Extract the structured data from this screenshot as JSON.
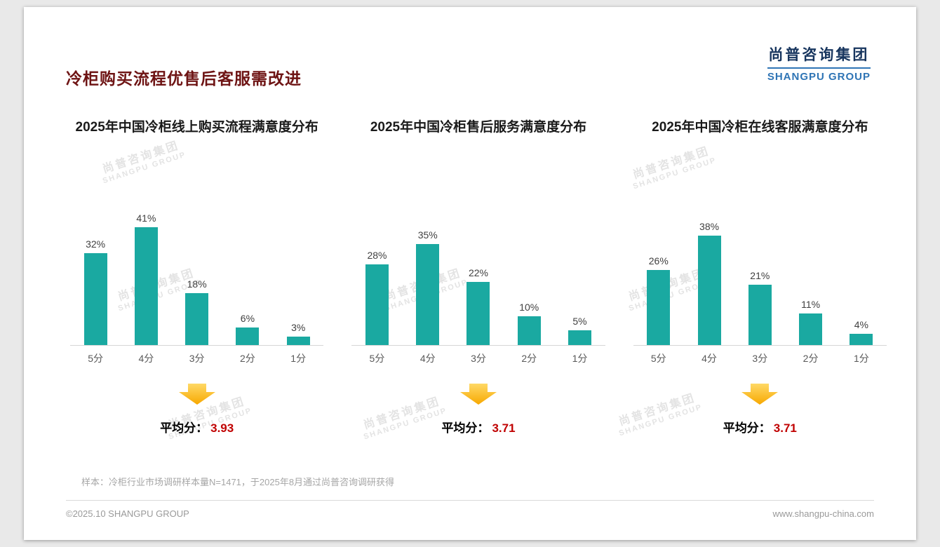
{
  "slide": {
    "title": "冷柜购买流程优售后客服需改进",
    "logo": {
      "cn": "尚普咨询集团",
      "en": "SHANGPU GROUP"
    },
    "watermark": {
      "cn": "尚普咨询集团",
      "en": "SHANGPU GROUP"
    },
    "avg_label": "平均分：",
    "footnote": "样本：冷柜行业市场调研样本量N=1471，于2025年8月通过尚普咨询调研获得",
    "footer_left": "©2025.10 SHANGPU GROUP",
    "footer_right": "www.shangpu-china.com",
    "colors": {
      "bar": "#1aa9a1",
      "title": "#6e1414",
      "average_value": "#c00000",
      "arrow": "#ffc000",
      "logo_blue": "#2e74b5"
    }
  },
  "chart_data": [
    {
      "type": "bar",
      "title": "2025年中国冷柜线上购买流程满意度分布",
      "categories": [
        "5分",
        "4分",
        "3分",
        "2分",
        "1分"
      ],
      "values": [
        32,
        41,
        18,
        6,
        3
      ],
      "unit": "%",
      "ylim": [
        0,
        45
      ],
      "grid": false,
      "legend": "none",
      "average_label": "平均分：",
      "average": "3.93"
    },
    {
      "type": "bar",
      "title": "2025年中国冷柜售后服务满意度分布",
      "categories": [
        "5分",
        "4分",
        "3分",
        "2分",
        "1分"
      ],
      "values": [
        28,
        35,
        22,
        10,
        5
      ],
      "unit": "%",
      "ylim": [
        0,
        45
      ],
      "grid": false,
      "legend": "none",
      "average_label": "平均分：",
      "average": "3.71"
    },
    {
      "type": "bar",
      "title": "2025年中国冷柜在线客服满意度分布",
      "categories": [
        "5分",
        "4分",
        "3分",
        "2分",
        "1分"
      ],
      "values": [
        26,
        38,
        21,
        11,
        4
      ],
      "unit": "%",
      "ylim": [
        0,
        45
      ],
      "grid": false,
      "legend": "none",
      "average_label": "平均分：",
      "average": "3.71"
    }
  ]
}
